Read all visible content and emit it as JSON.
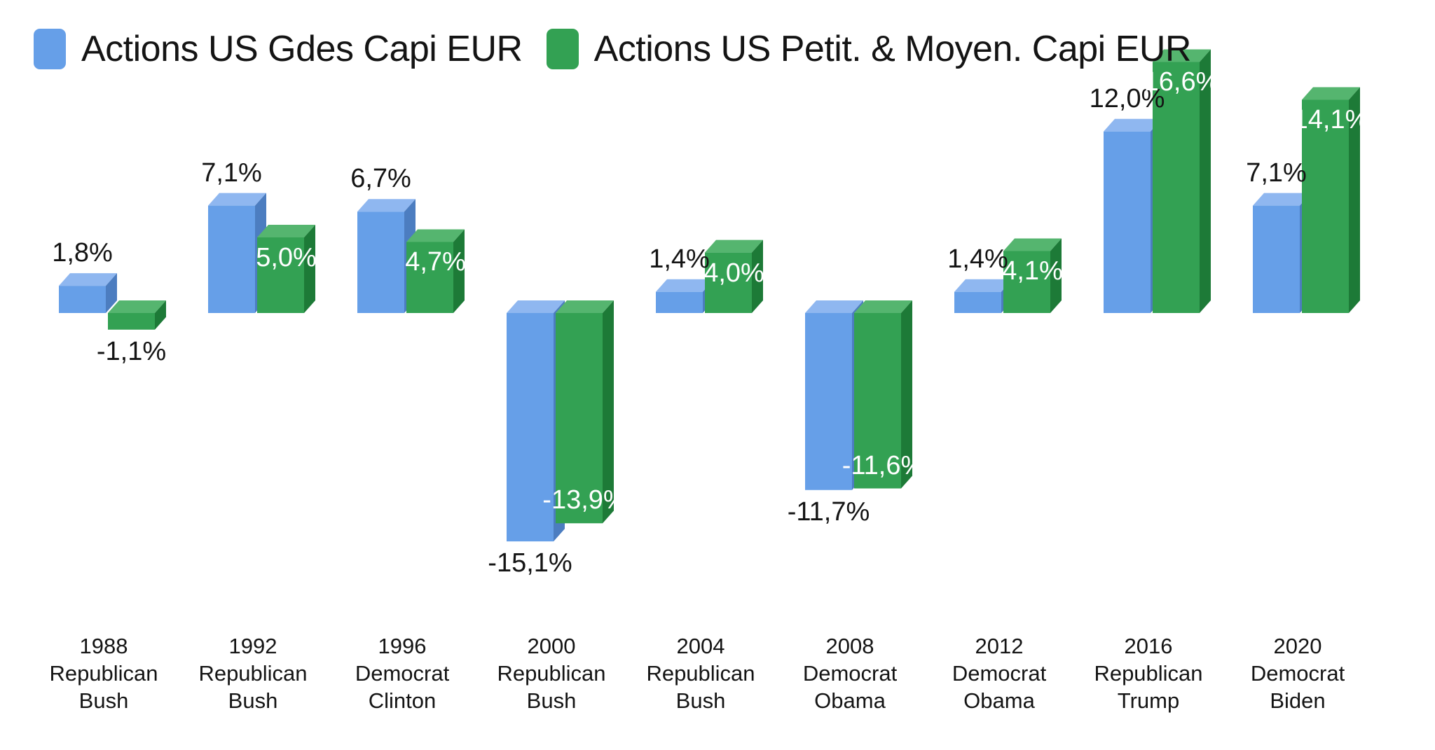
{
  "legend": {
    "items": [
      {
        "label": "Actions US Gdes Capi EUR",
        "color": "#669fe8"
      },
      {
        "label": "Actions US Petit. & Moyen. Capi EUR",
        "color": "#33a153"
      }
    ],
    "position": "top-left"
  },
  "chart_data": {
    "type": "bar",
    "style": "3d-columns",
    "title": "",
    "xlabel": "",
    "ylabel": "",
    "unit": "%",
    "value_format": "comma-decimal",
    "gridlines": false,
    "ylim": [
      -16,
      17
    ],
    "categories": [
      {
        "year": "1988",
        "party": "Republican",
        "president": "Bush"
      },
      {
        "year": "1992",
        "party": "Republican",
        "president": "Bush"
      },
      {
        "year": "1996",
        "party": "Democrat",
        "president": "Clinton"
      },
      {
        "year": "2000",
        "party": "Republican",
        "president": "Bush"
      },
      {
        "year": "2004",
        "party": "Republican",
        "president": "Bush"
      },
      {
        "year": "2008",
        "party": "Democrat",
        "president": "Obama"
      },
      {
        "year": "2012",
        "party": "Democrat",
        "president": "Obama"
      },
      {
        "year": "2016",
        "party": "Republican",
        "president": "Trump"
      },
      {
        "year": "2020",
        "party": "Democrat",
        "president": "Biden"
      }
    ],
    "series": [
      {
        "name": "Actions US Gdes Capi EUR",
        "values": [
          1.8,
          7.1,
          6.7,
          -15.1,
          1.4,
          -11.7,
          1.4,
          12.0,
          7.1
        ],
        "labels": [
          "1,8%",
          "7,1%",
          "6,7%",
          "-15,1%",
          "1,4%",
          "-11,7%",
          "1,4%",
          "12,0%",
          "7,1%"
        ],
        "label_inside": [
          false,
          false,
          false,
          false,
          false,
          false,
          false,
          false,
          false
        ],
        "colors": {
          "front": "#669fe8",
          "top": "#8fb7f0",
          "side": "#4c7dc0"
        }
      },
      {
        "name": "Actions US Petit. & Moyen. Capi EUR",
        "values": [
          -1.1,
          5.0,
          4.7,
          -13.9,
          4.0,
          -11.6,
          4.1,
          16.6,
          14.1
        ],
        "labels": [
          "-1,1%",
          "5,0%",
          "4,7%",
          "-13,9%",
          "4,0%",
          "-11,6%",
          "4,1%",
          "16,6%",
          "14,1%"
        ],
        "label_inside": [
          false,
          true,
          true,
          true,
          true,
          true,
          true,
          true,
          true
        ],
        "colors": {
          "front": "#33a153",
          "top": "#55b56f",
          "side": "#1d7a37"
        }
      }
    ]
  }
}
